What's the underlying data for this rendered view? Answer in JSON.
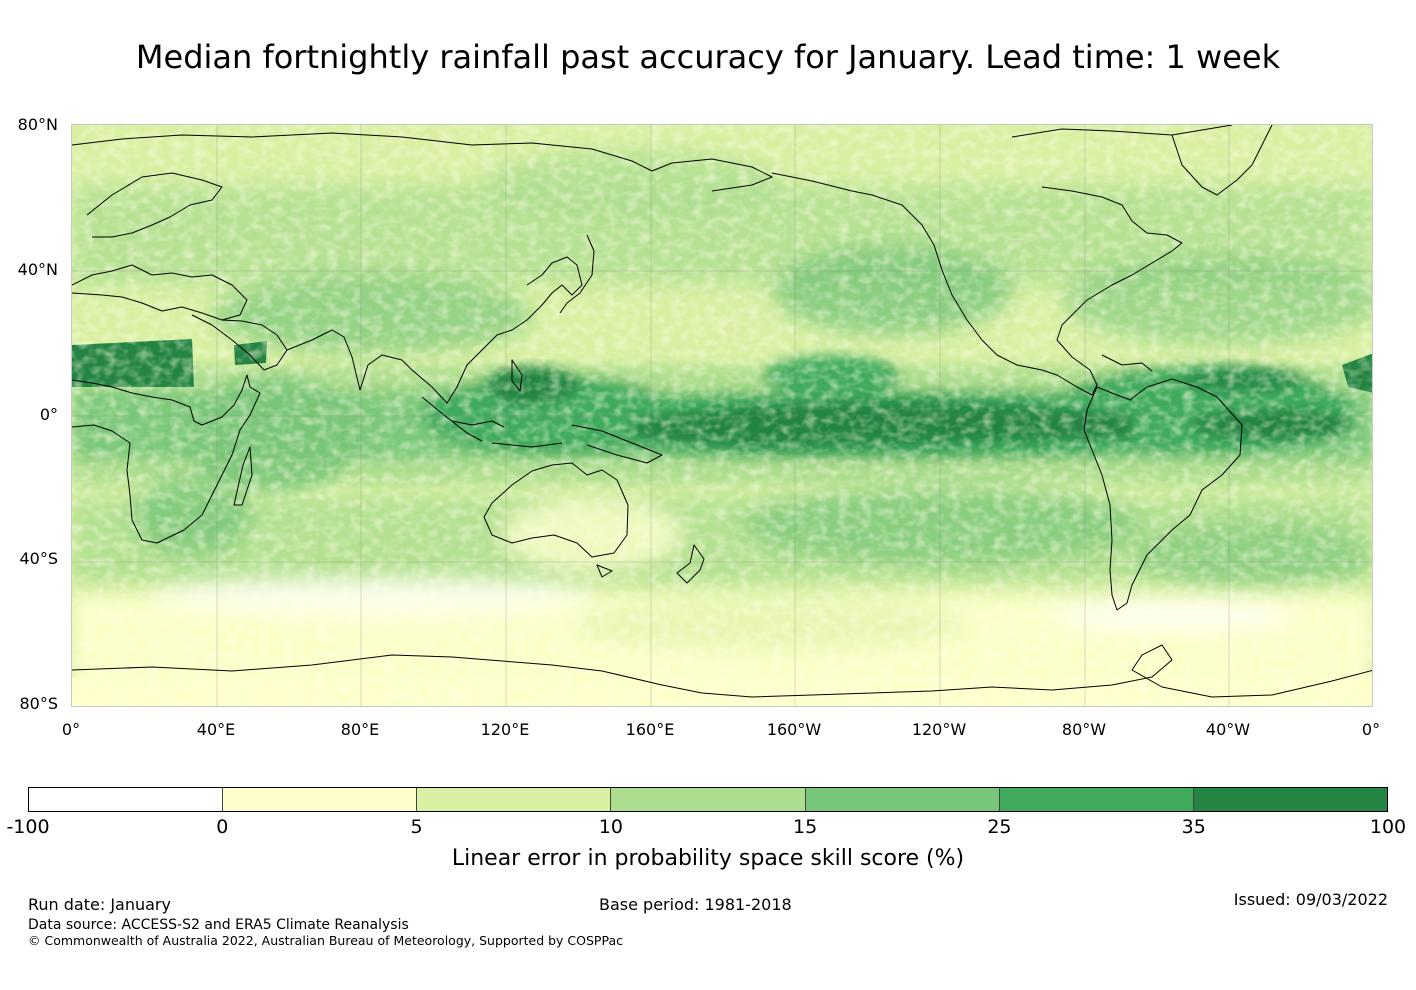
{
  "title": "Median fortnightly rainfall past accuracy for January. Lead time: 1 week",
  "map": {
    "projection": "Plate Carrée, centred on 180°",
    "lat_ticks": [
      "80°N",
      "40°N",
      "0°",
      "40°S",
      "80°S"
    ],
    "lon_ticks": [
      "0°",
      "40°E",
      "80°E",
      "120°E",
      "160°E",
      "160°W",
      "120°W",
      "80°W",
      "40°W",
      "0°"
    ],
    "features": {
      "high_skill_regions": [
        {
          "name": "Equatorial Pacific band",
          "class": "35-100"
        },
        {
          "name": "Sahara / Arabian Peninsula",
          "class": "35-100"
        },
        {
          "name": "Maritime Continent",
          "class": "25-35"
        },
        {
          "name": "Amazon basin",
          "class": "25-35"
        }
      ],
      "low_skill_regions": [
        {
          "name": "Southern Ocean",
          "class": "0-5"
        },
        {
          "name": "Antarctica",
          "class": "0-5"
        }
      ]
    }
  },
  "colorbar": {
    "bounds": [
      "-100",
      "0",
      "5",
      "10",
      "15",
      "25",
      "35",
      "100"
    ],
    "colors": [
      "#ffffff",
      "#ffffcc",
      "#d9f0a3",
      "#addd8e",
      "#78c679",
      "#41ab5d",
      "#238443"
    ],
    "label": "Linear error in probability space skill score (%)"
  },
  "footer": {
    "run_date": "Run date: January",
    "base_period": "Base period: 1981-2018",
    "issued": "Issued: 09/03/2022",
    "data_source": "Data source: ACCESS-S2 and ERA5 Climate Reanalysis",
    "copyright": "© Commonwealth of Australia 2022, Australian Bureau of Meteorology, Supported by COSPPac"
  }
}
